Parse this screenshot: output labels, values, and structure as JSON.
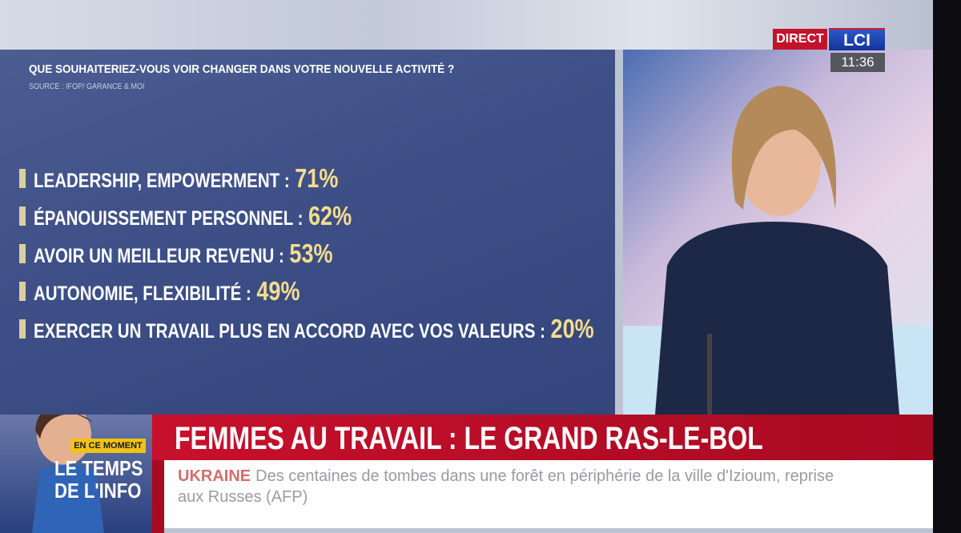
{
  "broadcast": {
    "live_label": "DIRECT",
    "channel": "LCI",
    "time": "11:36"
  },
  "graphic": {
    "question": "QUE SOUHAITERIEZ-VOUS VOIR CHANGER DANS VOTRE NOUVELLE ACTIVITÉ ?",
    "source": "SOURCE : IFOP/ GARANCE & MOI",
    "items": [
      {
        "label": "LEADERSHIP, EMPOWERMENT :",
        "value": "71%"
      },
      {
        "label": "ÉPANOUISSEMENT PERSONNEL :",
        "value": "62%"
      },
      {
        "label": "AVOIR UN MEILLEUR REVENU :",
        "value": "53%"
      },
      {
        "label": "AUTONOMIE, FLEXIBILITÉ :",
        "value": "49%"
      },
      {
        "label": "EXERCER UN TRAVAIL PLUS EN ACCORD AVEC VOS VALEURS :",
        "value": "20%"
      }
    ]
  },
  "program": {
    "tag": "EN CE MOMENT",
    "title_line1": "LE TEMPS",
    "title_line2": "DE L'INFO"
  },
  "headline": "FEMMES AU TRAVAIL : LE GRAND RAS-LE-BOL",
  "ticker": {
    "topic": "UKRAINE",
    "text": "Des centaines de tombes dans une forêt en périphérie de la ville d'Izioum, reprise aux Russes (AFP)"
  }
}
